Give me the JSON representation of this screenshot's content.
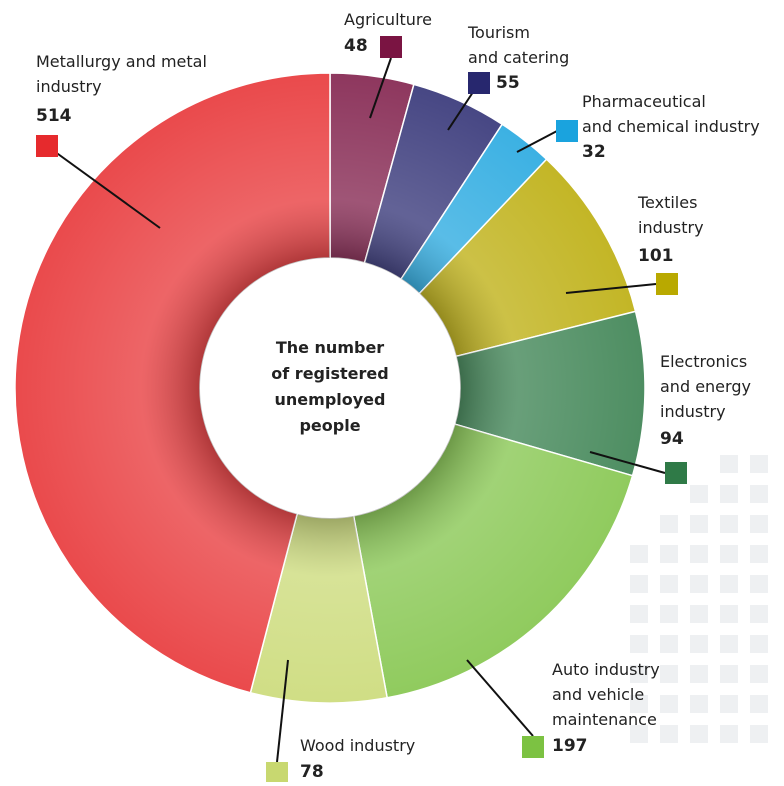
{
  "chart_data": {
    "type": "donut",
    "title": "The number of registered unemployed people",
    "categories": [
      "Agriculture",
      "Tourism and catering",
      "Pharmaceutical and chemical industry",
      "Textiles industry",
      "Electronics and energy industry",
      "Auto industry and vehicle maintenance",
      "Wood industry",
      "Metallurgy and metal industry"
    ],
    "values": [
      48,
      55,
      32,
      101,
      94,
      197,
      78,
      514
    ],
    "colors": [
      "#7a1442",
      "#27276e",
      "#1aa3de",
      "#b9a900",
      "#2f7a47",
      "#7cc242",
      "#c8d870",
      "#e62a2d"
    ]
  }
}
